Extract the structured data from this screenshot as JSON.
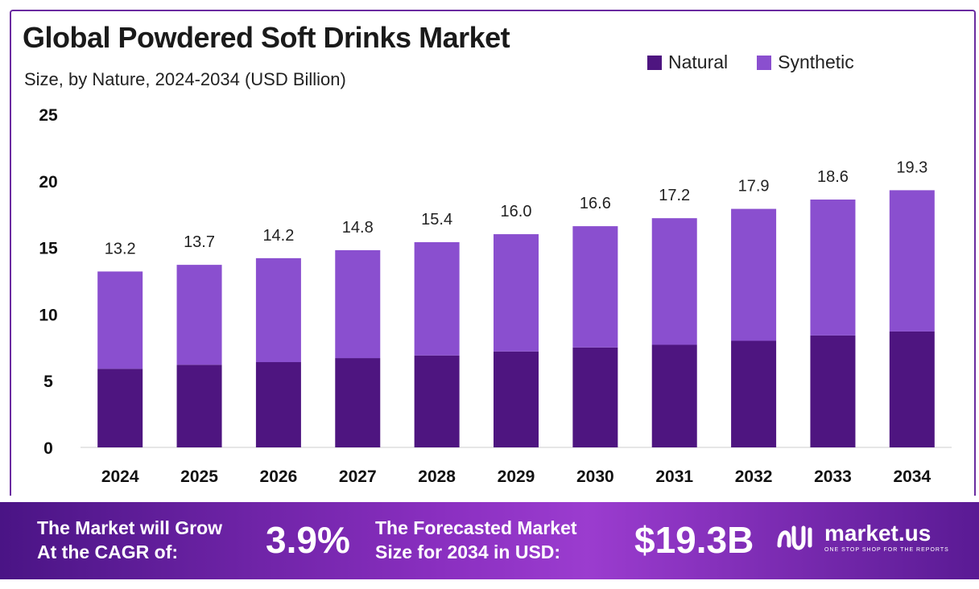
{
  "header": {
    "title": "Global Powdered Soft Drinks Market",
    "subtitle": "Size, by Nature, 2024-2034 (USD Billion)"
  },
  "legend": [
    {
      "label": "Natural",
      "color": "#4e1580"
    },
    {
      "label": "Synthetic",
      "color": "#8a4fcf"
    }
  ],
  "chart_data": {
    "type": "bar",
    "stacked": true,
    "categories": [
      "2024",
      "2025",
      "2026",
      "2027",
      "2028",
      "2029",
      "2030",
      "2031",
      "2032",
      "2033",
      "2034"
    ],
    "series": [
      {
        "name": "Natural",
        "color": "#4e1580",
        "values": [
          5.9,
          6.2,
          6.4,
          6.7,
          6.9,
          7.2,
          7.5,
          7.7,
          8.0,
          8.4,
          8.7
        ]
      },
      {
        "name": "Synthetic",
        "color": "#8a4fcf",
        "values": [
          7.3,
          7.5,
          7.8,
          8.1,
          8.5,
          8.8,
          9.1,
          9.5,
          9.9,
          10.2,
          10.6
        ]
      }
    ],
    "totals": [
      "13.2",
      "13.7",
      "14.2",
      "14.8",
      "15.4",
      "16.0",
      "16.6",
      "17.2",
      "17.9",
      "18.6",
      "19.3"
    ],
    "yticks": [
      "0",
      "5",
      "10",
      "15",
      "20",
      "25"
    ],
    "ylim": [
      0,
      25
    ],
    "title": "Global Powdered Soft Drinks Market",
    "xlabel": "",
    "ylabel": ""
  },
  "banner": {
    "cagr_label_line1": "The Market will Grow",
    "cagr_label_line2": "At the CAGR of:",
    "cagr_value": "3.9%",
    "forecast_label_line1": "The Forecasted Market",
    "forecast_label_line2": "Size for 2034 in USD:",
    "forecast_value": "$19.3B",
    "brand_name": "market.us",
    "brand_tagline": "ONE STOP SHOP FOR THE REPORTS"
  }
}
